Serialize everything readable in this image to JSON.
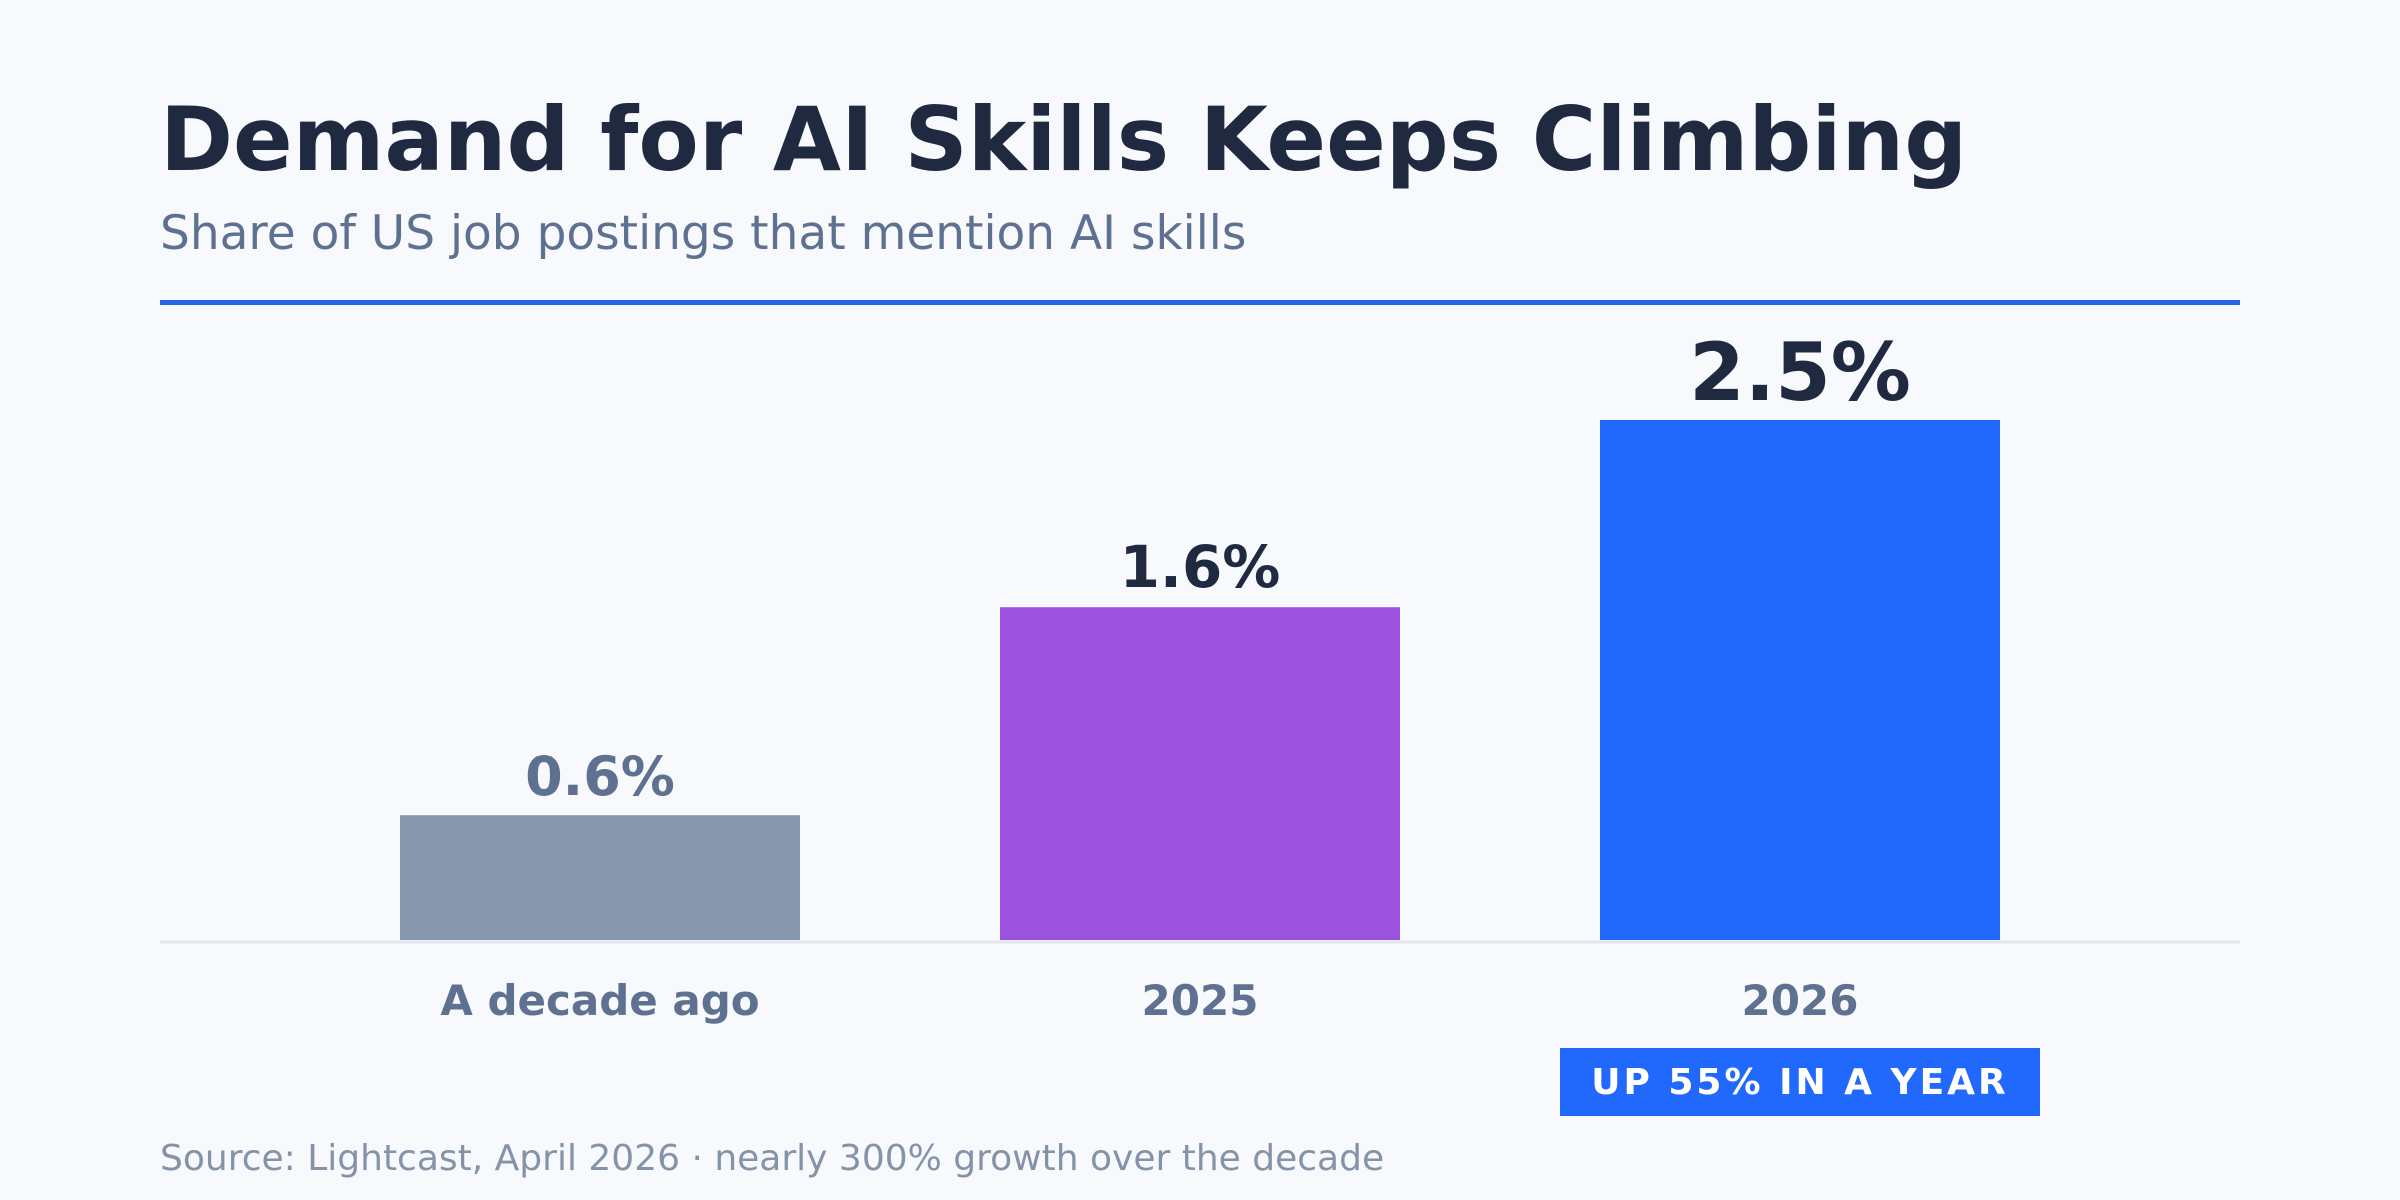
{
  "header": {
    "title": "Demand for AI Skills Keeps Climbing",
    "subtitle": "Share of US job postings that mention AI skills"
  },
  "chart_data": {
    "type": "bar",
    "title": "Demand for AI Skills Keeps Climbing",
    "subtitle": "Share of US job postings that mention AI skills",
    "categories": [
      "A decade ago",
      "2025",
      "2026"
    ],
    "values": [
      0.6,
      1.6,
      2.5
    ],
    "value_labels": [
      "0.6%",
      "1.6%",
      "2.5%"
    ],
    "unit": "%",
    "xlabel": "",
    "ylabel": "",
    "ylim": [
      0,
      2.5
    ],
    "grid": false,
    "legend": "none",
    "bar_colors": [
      "#8797ad",
      "#9b53df",
      "#2169fd"
    ],
    "label_colors": [
      "#5f7190",
      "#1f2a40",
      "#1f2a40"
    ],
    "annotation": "UP 55% IN A YEAR"
  },
  "colors": {
    "accent": "#2566e0",
    "highlight": "#2169fd",
    "baseline": "#e2e6ee",
    "category_label": "#5f7190"
  },
  "footer": {
    "source": "Source: Lightcast, April 2026 · nearly 300% growth over the decade"
  }
}
